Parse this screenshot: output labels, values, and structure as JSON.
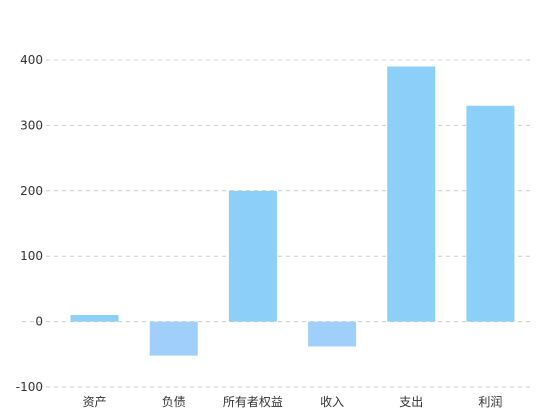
{
  "chart_data": {
    "type": "bar",
    "categories": [
      "资产",
      "负债",
      "所有者权益",
      "收入",
      "支出",
      "利润"
    ],
    "values": [
      10,
      -52,
      200,
      -38,
      390,
      330
    ],
    "ylim": [
      -100,
      400
    ],
    "yticks": [
      -100,
      0,
      100,
      200,
      300,
      400
    ],
    "grid": true,
    "colors": {
      "positive": "#8ccff8",
      "negative": "#9fcffa",
      "grid": "#cccccc",
      "text": "#333333"
    }
  }
}
